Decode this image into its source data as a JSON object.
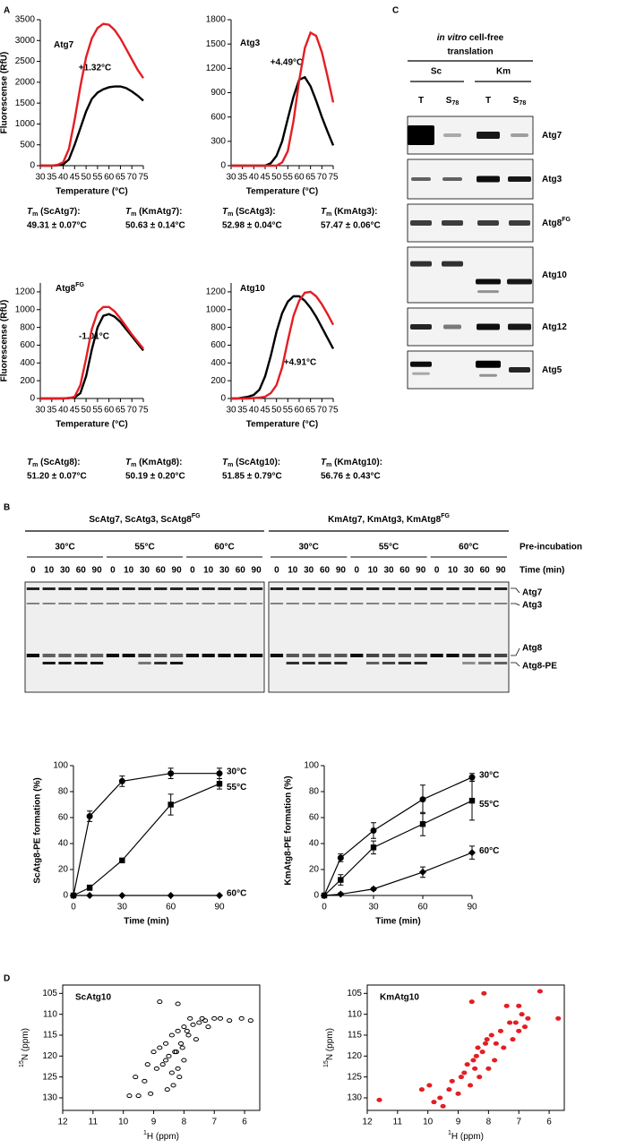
{
  "panel_labels": [
    "A",
    "B",
    "C",
    "D"
  ],
  "panel_a": {
    "tm": [
      {
        "symbol": "T",
        "sub": "m",
        "text": " (ScAtg7):",
        "value": "49.31 ± 0.07°C",
        "color": "#000000"
      },
      {
        "symbol": "T",
        "sub": "m",
        "text": " (KmAtg7):",
        "value": "50.63 ± 0.14°C",
        "color": "#e31e24"
      },
      {
        "symbol": "T",
        "sub": "m",
        "text": " (ScAtg3):",
        "value": "52.98 ± 0.04°C",
        "color": "#000000"
      },
      {
        "symbol": "T",
        "sub": "m",
        "text": " (KmAtg3):",
        "value": "57.47 ± 0.06°C",
        "color": "#e31e24"
      },
      {
        "symbol": "T",
        "sub": "m",
        "text": " (ScAtg8):",
        "value": "51.20 ± 0.07°C",
        "color": "#000000"
      },
      {
        "symbol": "T",
        "sub": "m",
        "text": " (KmAtg8):",
        "value": "50.19 ± 0.20°C",
        "color": "#e31e24"
      },
      {
        "symbol": "T",
        "sub": "m",
        "text": " (ScAtg10):",
        "value": "51.85 ± 0.79°C",
        "color": "#000000"
      },
      {
        "symbol": "T",
        "sub": "m",
        "text": " (KmAtg10):",
        "value": "56.76 ± 0.43°C",
        "color": "#e31e24"
      }
    ]
  },
  "panel_b": {
    "headers": [
      {
        "text": "ScAtg7, ScAtg3, ScAtg8",
        "sup": "FG",
        "color": "#000000"
      },
      {
        "text": "KmAtg7, KmAtg3, KmAtg8",
        "sup": "FG",
        "color": "#e31e24"
      }
    ],
    "temperatures": [
      "30°C",
      "55°C",
      "60°C"
    ],
    "preincubation": "Pre-incubation",
    "times": [
      "0",
      "10",
      "30",
      "60",
      "90"
    ],
    "time_label": "Time (min)",
    "bands": [
      "Atg7",
      "Atg3",
      "Atg8",
      "Atg8-PE"
    ]
  },
  "panel_c": {
    "header_italic": "in vitro",
    "header_rest": " cell-free",
    "header_line2": "translation",
    "groups": [
      {
        "text": "Sc",
        "color": "#000000"
      },
      {
        "text": "Km",
        "color": "#e31e24"
      }
    ],
    "lanes": [
      {
        "text": "T"
      },
      {
        "text": "S",
        "sub": "78"
      }
    ],
    "rows": [
      {
        "label": "Atg7"
      },
      {
        "label": "Atg3"
      },
      {
        "label": "Atg8",
        "sup": "FG"
      },
      {
        "label": "Atg10"
      },
      {
        "label": "Atg12"
      },
      {
        "label": "Atg5"
      }
    ]
  },
  "chart_data": [
    {
      "type": "line",
      "title": "Atg7",
      "annotation": "+1.32°C",
      "y_label": "Fluorescense (RfU)",
      "x_label": "Temperature (°C)",
      "x": [
        30,
        32.5,
        35,
        37.5,
        40,
        42.5,
        45,
        47.5,
        50,
        52.5,
        55,
        57.5,
        60,
        62.5,
        65,
        67.5,
        70,
        72.5,
        75
      ],
      "xlim": [
        30,
        75
      ],
      "xticks": [
        30,
        35,
        40,
        45,
        50,
        55,
        60,
        65,
        70,
        75
      ],
      "ylim": [
        0,
        3500
      ],
      "yticks": [
        0,
        500,
        1000,
        1500,
        2000,
        2500,
        3000,
        3500
      ],
      "series": [
        {
          "color": "#000000",
          "values": [
            0,
            0,
            0,
            10,
            30,
            150,
            500,
            900,
            1300,
            1600,
            1750,
            1830,
            1880,
            1900,
            1900,
            1860,
            1780,
            1680,
            1560
          ]
        },
        {
          "color": "#e31e24",
          "values": [
            10,
            0,
            0,
            20,
            80,
            400,
            1100,
            1900,
            2600,
            3050,
            3300,
            3400,
            3380,
            3250,
            3050,
            2800,
            2550,
            2300,
            2100
          ]
        }
      ]
    },
    {
      "type": "line",
      "title": "Atg3",
      "annotation": "+4.49°C",
      "x_label": "Temperature (°C)",
      "x": [
        30,
        32.5,
        35,
        37.5,
        40,
        42.5,
        45,
        47.5,
        50,
        52.5,
        55,
        57.5,
        60,
        62.5,
        65,
        67.5,
        70,
        72.5,
        75
      ],
      "xlim": [
        30,
        75
      ],
      "xticks": [
        30,
        35,
        40,
        45,
        50,
        55,
        60,
        65,
        70,
        75
      ],
      "ylim": [
        0,
        1800
      ],
      "yticks": [
        0,
        300,
        600,
        900,
        1200,
        1500,
        1800
      ],
      "series": [
        {
          "color": "#000000",
          "values": [
            0,
            0,
            0,
            0,
            0,
            0,
            0,
            30,
            120,
            300,
            580,
            850,
            1060,
            1090,
            980,
            800,
            600,
            420,
            250
          ]
        },
        {
          "color": "#e31e24",
          "values": [
            0,
            0,
            0,
            0,
            0,
            0,
            0,
            0,
            0,
            40,
            180,
            550,
            1050,
            1450,
            1640,
            1600,
            1400,
            1100,
            780
          ]
        }
      ]
    },
    {
      "type": "line",
      "title": "Atg8",
      "title_sup": "FG",
      "annotation": "-1.01°C",
      "y_label": "Fluorescense (RfU)",
      "x_label": "Temperature (°C)",
      "x": [
        30,
        32.5,
        35,
        37.5,
        40,
        42.5,
        45,
        47.5,
        50,
        52.5,
        55,
        57.5,
        60,
        62.5,
        65,
        67.5,
        70,
        72.5,
        75
      ],
      "xlim": [
        30,
        75
      ],
      "xticks": [
        30,
        35,
        40,
        45,
        50,
        55,
        60,
        65,
        70,
        75
      ],
      "ylim": [
        0,
        1300
      ],
      "yticks": [
        0,
        200,
        400,
        600,
        800,
        1000,
        1200
      ],
      "series": [
        {
          "color": "#000000",
          "values": [
            0,
            0,
            0,
            0,
            0,
            5,
            10,
            60,
            250,
            550,
            800,
            930,
            950,
            920,
            860,
            780,
            700,
            620,
            540
          ]
        },
        {
          "color": "#e31e24",
          "values": [
            0,
            0,
            0,
            0,
            0,
            5,
            20,
            150,
            450,
            780,
            970,
            1030,
            1030,
            980,
            900,
            810,
            720,
            640,
            560
          ]
        }
      ]
    },
    {
      "type": "line",
      "title": "Atg10",
      "annotation": "+4.91°C",
      "x_label": "Temperature (°C)",
      "x": [
        30,
        32.5,
        35,
        37.5,
        40,
        42.5,
        45,
        47.5,
        50,
        52.5,
        55,
        57.5,
        60,
        62.5,
        65,
        67.5,
        70,
        72.5,
        75
      ],
      "xlim": [
        30,
        75
      ],
      "xticks": [
        30,
        35,
        40,
        45,
        50,
        55,
        60,
        65,
        70,
        75
      ],
      "ylim": [
        0,
        1300
      ],
      "yticks": [
        0,
        200,
        400,
        600,
        800,
        1000,
        1200
      ],
      "series": [
        {
          "color": "#000000",
          "values": [
            0,
            0,
            10,
            20,
            40,
            100,
            250,
            480,
            750,
            960,
            1090,
            1150,
            1150,
            1100,
            1020,
            920,
            800,
            680,
            560
          ]
        },
        {
          "color": "#e31e24",
          "values": [
            0,
            0,
            0,
            0,
            5,
            10,
            20,
            60,
            150,
            350,
            650,
            930,
            1100,
            1190,
            1200,
            1150,
            1060,
            950,
            830
          ]
        }
      ]
    },
    {
      "type": "line",
      "y_label": "ScAtg8-PE formation (%)",
      "x_label": "Time (min)",
      "x": [
        0,
        10,
        30,
        60,
        90
      ],
      "xlim": [
        0,
        90
      ],
      "xticks": [
        0,
        30,
        60,
        90
      ],
      "ylim": [
        0,
        100
      ],
      "yticks": [
        0,
        20,
        40,
        60,
        80,
        100
      ],
      "series": [
        {
          "name": "30°C",
          "marker": "circle",
          "color": "#000000",
          "values": [
            0,
            61,
            88,
            94,
            94
          ],
          "errors": [
            0,
            4,
            4,
            4,
            4
          ]
        },
        {
          "name": "55°C",
          "marker": "square",
          "color": "#000000",
          "values": [
            0,
            6,
            27,
            70,
            86
          ],
          "errors": [
            0,
            2,
            1,
            8,
            4
          ]
        },
        {
          "name": "60°C",
          "marker": "diamond",
          "color": "#000000",
          "values": [
            0,
            0,
            0,
            0,
            0
          ],
          "errors": [
            0,
            0,
            0,
            0,
            0
          ]
        }
      ]
    },
    {
      "type": "line",
      "y_label": "KmAtg8-PE formation (%)",
      "x_label": "Time (min)",
      "x": [
        0,
        10,
        30,
        60,
        90
      ],
      "xlim": [
        0,
        90
      ],
      "xticks": [
        0,
        30,
        60,
        90
      ],
      "ylim": [
        0,
        100
      ],
      "yticks": [
        0,
        20,
        40,
        60,
        80,
        100
      ],
      "series": [
        {
          "name": "30°C",
          "marker": "circle",
          "color": "#000000",
          "values": [
            0,
            29,
            50,
            74,
            91
          ],
          "errors": [
            0,
            3,
            6,
            11,
            3
          ]
        },
        {
          "name": "55°C",
          "marker": "square",
          "color": "#000000",
          "values": [
            0,
            12,
            37,
            55,
            73
          ],
          "errors": [
            0,
            4,
            5,
            9,
            15
          ]
        },
        {
          "name": "60°C",
          "marker": "diamond",
          "color": "#000000",
          "values": [
            0,
            1,
            5,
            18,
            33
          ],
          "errors": [
            0,
            1,
            1,
            4,
            5
          ]
        }
      ]
    },
    {
      "type": "scatter",
      "title": "ScAtg10",
      "title_color": "#000000",
      "x_label_sup": "1",
      "x_label": "H (ppm)",
      "y_label_sup": "15",
      "y_label": "N (ppm)",
      "xlim": [
        12,
        5.5
      ],
      "xticks": [
        12,
        11,
        10,
        9,
        8,
        7,
        6
      ],
      "ylim": [
        133,
        103
      ],
      "yticks": [
        105,
        110,
        115,
        120,
        125,
        130
      ],
      "color": "#000000",
      "x": [
        7.0,
        7.3,
        7.5,
        7.8,
        8.0,
        8.2,
        8.4,
        8.6,
        8.8,
        9.0,
        9.2,
        9.6,
        7.2,
        7.6,
        8.1,
        8.3,
        8.5,
        8.7,
        8.9,
        9.3,
        7.4,
        7.9,
        8.0,
        8.2,
        8.4,
        8.6,
        6.8,
        6.5,
        6.1,
        5.8,
        7.7,
        8.15,
        8.35,
        8.55,
        9.1,
        9.5,
        9.8,
        8.25,
        8.05,
        7.85,
        8.8,
        8.2
      ],
      "values": [
        111,
        111.5,
        112,
        111,
        113,
        114,
        115,
        117,
        118,
        119,
        122,
        125,
        113,
        116,
        117,
        119,
        120,
        122,
        123,
        126,
        111,
        114,
        121,
        123,
        124,
        121,
        111,
        111.5,
        111,
        111.5,
        112.5,
        125,
        127,
        128,
        129,
        129.5,
        129.5,
        119,
        118,
        115,
        107,
        107.5
      ]
    },
    {
      "type": "scatter",
      "title": "KmAtg10",
      "title_color": "#e31e24",
      "x_label_sup": "1",
      "x_label": "H (ppm)",
      "y_label_sup": "15",
      "y_label": "N (ppm)",
      "xlim": [
        12,
        5.5
      ],
      "xticks": [
        12,
        11,
        10,
        9,
        8,
        7,
        6
      ],
      "ylim": [
        133,
        103
      ],
      "yticks": [
        105,
        110,
        115,
        120,
        125,
        130
      ],
      "color": "#e31e24",
      "x": [
        6.3,
        5.7,
        11.6,
        9.8,
        9.5,
        9.0,
        8.6,
        8.3,
        8.0,
        7.8,
        7.5,
        7.2,
        7.0,
        6.8,
        8.4,
        8.2,
        8.8,
        9.2,
        8.1,
        7.9,
        7.6,
        7.3,
        8.5,
        8.7,
        9.3,
        9.6,
        7.1,
        6.9,
        8.35,
        8.05,
        7.75,
        8.45,
        8.9,
        10.2,
        9.95,
        7.4,
        7.0,
        8.15,
        8.55,
        6.7
      ],
      "values": [
        104.5,
        111,
        130.5,
        131,
        132,
        129,
        127,
        125,
        123,
        121,
        118,
        116,
        114,
        113,
        120,
        119,
        124,
        126,
        117,
        115,
        114,
        112,
        121,
        122,
        128,
        130,
        112,
        110,
        118,
        116,
        117,
        123,
        125,
        128,
        127,
        108,
        108,
        105,
        107,
        111
      ]
    }
  ]
}
